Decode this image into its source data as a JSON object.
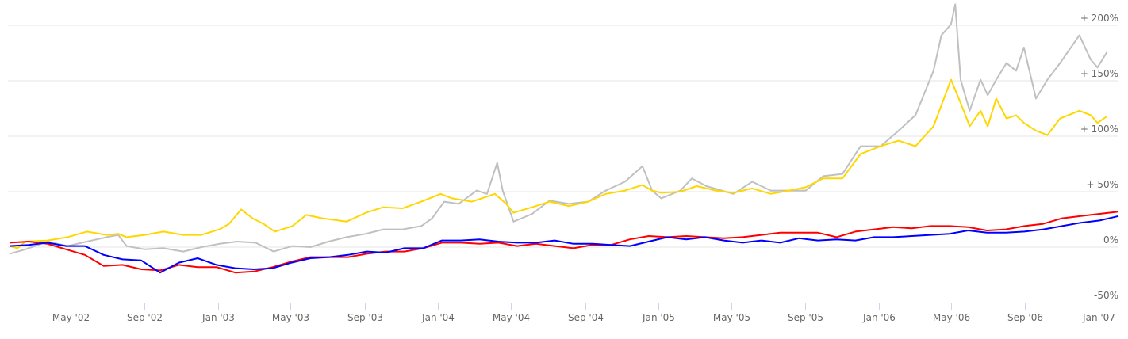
{
  "chart_data": {
    "type": "line",
    "title": "",
    "xlabel": "",
    "ylabel": "",
    "ylim": [
      -50,
      200
    ],
    "y_ticks": [
      -50,
      0,
      50,
      100,
      150,
      200
    ],
    "y_tick_labels": [
      "-50%",
      "0%",
      "+ 50%",
      "+ 100%",
      "+ 150%",
      "+ 200%"
    ],
    "y_axis_position": "right",
    "x_range": [
      "2002-01-20",
      "2007-01-31"
    ],
    "x_ticks": [
      "2002-05-01",
      "2002-09-01",
      "2003-01-01",
      "2003-05-01",
      "2003-09-01",
      "2004-01-01",
      "2004-05-01",
      "2004-09-01",
      "2005-01-01",
      "2005-05-01",
      "2005-09-01",
      "2006-01-01",
      "2006-05-01",
      "2006-09-01",
      "2007-01-01"
    ],
    "x_tick_labels": [
      "May '02",
      "Sep '02",
      "Jan '03",
      "May '03",
      "Sep '03",
      "Jan '04",
      "May '04",
      "Sep '04",
      "Jan '05",
      "May '05",
      "Sep '05",
      "Jan '06",
      "May '06",
      "Sep '06",
      "Jan '07"
    ],
    "grid": true,
    "legend": "none",
    "series": [
      {
        "color": "#c0c0c0",
        "points": [
          [
            "2002-01-20",
            -6
          ],
          [
            "2002-02-15",
            -2
          ],
          [
            "2002-03-24",
            5
          ],
          [
            "2002-04-26",
            1
          ],
          [
            "2002-05-28",
            5
          ],
          [
            "2002-06-30",
            9
          ],
          [
            "2002-07-19",
            11
          ],
          [
            "2002-08-02",
            1
          ],
          [
            "2002-09-01",
            -2
          ],
          [
            "2002-10-02",
            -1
          ],
          [
            "2002-11-04",
            -4
          ],
          [
            "2002-12-04",
            0
          ],
          [
            "2003-01-03",
            3
          ],
          [
            "2003-02-01",
            5
          ],
          [
            "2003-03-04",
            4
          ],
          [
            "2003-04-03",
            -4
          ],
          [
            "2003-05-04",
            1
          ],
          [
            "2003-06-03",
            0
          ],
          [
            "2003-07-03",
            5
          ],
          [
            "2003-08-02",
            9
          ],
          [
            "2003-09-03",
            12
          ],
          [
            "2003-10-02",
            16
          ],
          [
            "2003-11-03",
            16
          ],
          [
            "2003-12-04",
            19
          ],
          [
            "2003-12-22",
            26
          ],
          [
            "2004-01-11",
            41
          ],
          [
            "2004-02-04",
            39
          ],
          [
            "2004-03-05",
            51
          ],
          [
            "2004-03-22",
            48
          ],
          [
            "2004-04-08",
            76
          ],
          [
            "2004-04-17",
            51
          ],
          [
            "2004-05-05",
            23
          ],
          [
            "2004-06-05",
            30
          ],
          [
            "2004-07-04",
            42
          ],
          [
            "2004-08-05",
            39
          ],
          [
            "2004-09-06",
            41
          ],
          [
            "2004-10-05",
            51
          ],
          [
            "2004-11-06",
            59
          ],
          [
            "2004-12-05",
            73
          ],
          [
            "2004-12-21",
            51
          ],
          [
            "2005-01-05",
            44
          ],
          [
            "2005-02-06",
            51
          ],
          [
            "2005-02-25",
            62
          ],
          [
            "2005-03-21",
            55
          ],
          [
            "2005-05-05",
            48
          ],
          [
            "2005-06-05",
            59
          ],
          [
            "2005-07-06",
            51
          ],
          [
            "2005-08-05",
            51
          ],
          [
            "2005-09-02",
            51
          ],
          [
            "2005-10-01",
            64
          ],
          [
            "2005-11-02",
            66
          ],
          [
            "2005-12-02",
            91
          ],
          [
            "2006-01-04",
            91
          ],
          [
            "2006-02-03",
            105
          ],
          [
            "2006-03-03",
            119
          ],
          [
            "2006-04-02",
            159
          ],
          [
            "2006-04-15",
            191
          ],
          [
            "2006-05-01",
            201
          ],
          [
            "2006-05-08",
            219
          ],
          [
            "2006-05-17",
            151
          ],
          [
            "2006-06-01",
            123
          ],
          [
            "2006-06-19",
            151
          ],
          [
            "2006-07-01",
            137
          ],
          [
            "2006-07-15",
            151
          ],
          [
            "2006-08-01",
            166
          ],
          [
            "2006-08-17",
            159
          ],
          [
            "2006-08-30",
            180
          ],
          [
            "2006-09-19",
            134
          ],
          [
            "2006-10-08",
            151
          ],
          [
            "2006-10-29",
            166
          ],
          [
            "2006-11-30",
            191
          ],
          [
            "2006-12-19",
            169
          ],
          [
            "2006-12-30",
            162
          ],
          [
            "2007-01-15",
            176
          ]
        ]
      },
      {
        "color": "#ffd700",
        "points": [
          [
            "2002-01-20",
            1
          ],
          [
            "2002-02-02",
            -1
          ],
          [
            "2002-02-15",
            5
          ],
          [
            "2002-03-24",
            6
          ],
          [
            "2002-04-26",
            9
          ],
          [
            "2002-05-28",
            14
          ],
          [
            "2002-06-30",
            11
          ],
          [
            "2002-07-19",
            12
          ],
          [
            "2002-08-02",
            9
          ],
          [
            "2002-09-01",
            11
          ],
          [
            "2002-10-02",
            14
          ],
          [
            "2002-11-04",
            11
          ],
          [
            "2002-12-04",
            11
          ],
          [
            "2003-01-03",
            16
          ],
          [
            "2003-01-19",
            21
          ],
          [
            "2003-02-08",
            34
          ],
          [
            "2003-02-27",
            26
          ],
          [
            "2003-03-17",
            21
          ],
          [
            "2003-04-05",
            14
          ],
          [
            "2003-05-04",
            19
          ],
          [
            "2003-05-27",
            29
          ],
          [
            "2003-06-23",
            26
          ],
          [
            "2003-08-02",
            23
          ],
          [
            "2003-09-03",
            31
          ],
          [
            "2003-10-02",
            36
          ],
          [
            "2003-11-03",
            35
          ],
          [
            "2003-12-04",
            41
          ],
          [
            "2004-01-05",
            48
          ],
          [
            "2004-01-24",
            44
          ],
          [
            "2004-02-26",
            41
          ],
          [
            "2004-04-04",
            48
          ],
          [
            "2004-04-23",
            39
          ],
          [
            "2004-05-05",
            31
          ],
          [
            "2004-06-05",
            36
          ],
          [
            "2004-07-04",
            41
          ],
          [
            "2004-08-05",
            37
          ],
          [
            "2004-09-06",
            41
          ],
          [
            "2004-10-05",
            48
          ],
          [
            "2004-11-06",
            51
          ],
          [
            "2004-12-05",
            56
          ],
          [
            "2004-12-21",
            51
          ],
          [
            "2005-01-05",
            49
          ],
          [
            "2005-02-06",
            50
          ],
          [
            "2005-03-05",
            55
          ],
          [
            "2005-04-06",
            51
          ],
          [
            "2005-05-05",
            49
          ],
          [
            "2005-06-05",
            53
          ],
          [
            "2005-07-06",
            48
          ],
          [
            "2005-08-05",
            51
          ],
          [
            "2005-09-02",
            54
          ],
          [
            "2005-10-01",
            62
          ],
          [
            "2005-11-02",
            62
          ],
          [
            "2005-12-02",
            84
          ],
          [
            "2006-01-04",
            91
          ],
          [
            "2006-02-03",
            96
          ],
          [
            "2006-03-03",
            91
          ],
          [
            "2006-04-02",
            109
          ],
          [
            "2006-05-01",
            151
          ],
          [
            "2006-05-17",
            130
          ],
          [
            "2006-06-01",
            109
          ],
          [
            "2006-06-19",
            123
          ],
          [
            "2006-07-01",
            109
          ],
          [
            "2006-07-15",
            134
          ],
          [
            "2006-08-01",
            116
          ],
          [
            "2006-08-17",
            119
          ],
          [
            "2006-08-30",
            112
          ],
          [
            "2006-09-19",
            105
          ],
          [
            "2006-10-08",
            101
          ],
          [
            "2006-10-29",
            116
          ],
          [
            "2006-11-30",
            123
          ],
          [
            "2006-12-19",
            119
          ],
          [
            "2006-12-30",
            112
          ],
          [
            "2007-01-15",
            118
          ]
        ]
      },
      {
        "color": "#ff0000",
        "start": "2002-01-20",
        "frequency": "monthly",
        "values": [
          4,
          5,
          3,
          -2,
          -7,
          -17,
          -16,
          -20,
          -21,
          -16,
          -18,
          -18,
          -23,
          -22,
          -18,
          -13,
          -9,
          -9,
          -9,
          -6,
          -4,
          -4,
          -1,
          4,
          4,
          3,
          4,
          1,
          3,
          1,
          -1,
          2,
          2,
          7,
          10,
          9,
          10,
          9,
          8,
          9,
          11,
          13,
          13,
          13,
          9,
          14,
          16,
          18,
          17,
          19,
          19,
          18,
          15,
          16,
          19,
          21,
          26,
          28,
          30,
          32
        ]
      },
      {
        "color": "#0000ff",
        "start": "2002-01-20",
        "frequency": "monthly",
        "values": [
          1,
          2,
          4,
          1,
          1,
          -7,
          -11,
          -12,
          -23,
          -14,
          -10,
          -16,
          -19,
          -20,
          -19,
          -14,
          -10,
          -9,
          -7,
          -4,
          -5,
          -1,
          -1,
          6,
          6,
          7,
          5,
          4,
          4,
          6,
          3,
          3,
          2,
          1,
          5,
          9,
          7,
          9,
          6,
          4,
          6,
          4,
          8,
          6,
          7,
          6,
          9,
          9,
          10,
          11,
          12,
          15,
          13,
          13,
          14,
          16,
          19,
          22,
          24,
          28
        ]
      }
    ]
  }
}
